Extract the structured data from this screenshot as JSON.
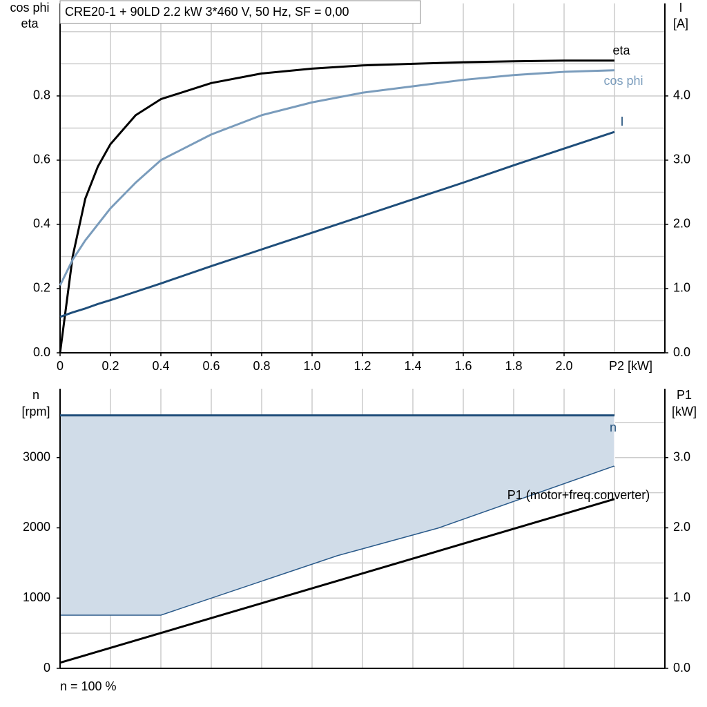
{
  "chart_data": [
    {
      "type": "line",
      "title": "CRE20-1 + 90LD   2.2 kW   3*460 V, 50 Hz, SF = 0,00",
      "ylabel": [
        "cos phi",
        "eta"
      ],
      "y2label": [
        "I",
        "[A]"
      ],
      "xlabel": "P2 [kW]",
      "xlim": [
        0,
        2.4
      ],
      "xticks": [
        0,
        0.2,
        0.4,
        0.6,
        0.8,
        {
          "value": 1,
          "label": "1.0"
        },
        1.2,
        1.4,
        1.6,
        1.8,
        {
          "value": 2,
          "label": "2.0"
        }
      ],
      "xgrid": [
        0.2,
        0.4,
        0.6,
        0.8,
        1,
        1.2,
        1.4,
        1.6,
        1.8,
        2,
        2.2
      ],
      "ylim": [
        0,
        1.088
      ],
      "yticks": [
        {
          "value": 0,
          "label": "0.0"
        },
        0.2,
        0.4,
        0.6,
        0.8
      ],
      "yminor": [
        0.1,
        0.3,
        0.5,
        0.7,
        0.9,
        1
      ],
      "y2lim": [
        0,
        5.44
      ],
      "y2ticks": [
        {
          "value": 0,
          "label": "0.0"
        },
        {
          "value": 1,
          "label": "1.0"
        },
        {
          "value": 2,
          "label": "2.0"
        },
        {
          "value": 3,
          "label": "3.0"
        },
        {
          "value": 4,
          "label": "4.0"
        }
      ],
      "grid": true,
      "x": [
        0,
        0.05,
        0.1,
        0.15,
        0.2,
        0.3,
        0.4,
        0.6,
        0.8,
        1,
        1.2,
        1.4,
        1.6,
        1.8,
        2,
        2.2
      ],
      "series": [
        {
          "name": "eta",
          "color": "#000000",
          "values": [
            0,
            0.3,
            0.48,
            0.58,
            0.65,
            0.74,
            0.79,
            0.84,
            0.87,
            0.885,
            0.895,
            0.9,
            0.905,
            0.908,
            0.91,
            0.91
          ]
        },
        {
          "name": "cos phi",
          "color": "#7a9cbc",
          "values": [
            0.21,
            0.29,
            0.35,
            0.4,
            0.45,
            0.53,
            0.6,
            0.68,
            0.74,
            0.78,
            0.81,
            0.83,
            0.85,
            0.865,
            0.875,
            0.88
          ]
        },
        {
          "name": "I",
          "color": "#1f4e7a",
          "axis": "y2",
          "values": [
            0.56,
            0.63,
            0.69,
            0.76,
            0.82,
            0.95,
            1.08,
            1.35,
            1.61,
            1.87,
            2.13,
            2.39,
            2.65,
            2.92,
            3.18,
            3.44
          ]
        }
      ]
    },
    {
      "type": "line",
      "ylabel": [
        "n",
        "[rpm]"
      ],
      "y2label": [
        "P1",
        "[kW]"
      ],
      "note": "n = 100 %",
      "xlim": [
        0,
        2.4
      ],
      "xgrid": [
        0.2,
        0.4,
        0.6,
        0.8,
        1,
        1.2,
        1.4,
        1.6,
        1.8,
        2,
        2.2
      ],
      "ylim": [
        0,
        3980
      ],
      "yticks": [
        0,
        1000,
        2000,
        3000
      ],
      "yminor": [
        500,
        1500,
        2500,
        3500
      ],
      "y2lim": [
        0,
        3.98
      ],
      "y2ticks": [
        {
          "value": 0,
          "label": "0.0"
        },
        {
          "value": 1,
          "label": "1.0"
        },
        {
          "value": 2,
          "label": "2.0"
        },
        {
          "value": 3,
          "label": "3.0"
        }
      ],
      "grid": true,
      "band": {
        "color": "#d0dce8",
        "edge": "#2a5a8a",
        "x": [
          0,
          0.4,
          1.1,
          1.5,
          2.2
        ],
        "lower": [
          757,
          757,
          1603,
          1996,
          2881
        ]
      },
      "series": [
        {
          "name": "n",
          "color": "#1f4e7a",
          "x": [
            0,
            2.2
          ],
          "values": [
            3600,
            3600
          ]
        },
        {
          "name": "P1 (motor+freq.converter)",
          "color": "#000000",
          "axis": "y2",
          "x": [
            0,
            2.2
          ],
          "values": [
            0.08,
            2.41
          ]
        }
      ]
    }
  ]
}
